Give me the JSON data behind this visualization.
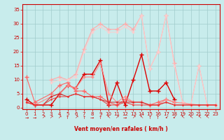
{
  "xlabel": "Vent moyen/en rafales ( km/h )",
  "xlim": [
    -0.5,
    23.5
  ],
  "ylim": [
    -0.5,
    37
  ],
  "yticks": [
    0,
    5,
    10,
    15,
    20,
    25,
    30,
    35
  ],
  "xticks": [
    0,
    1,
    2,
    3,
    4,
    5,
    6,
    7,
    8,
    9,
    10,
    11,
    12,
    13,
    14,
    15,
    16,
    17,
    18,
    19,
    20,
    21,
    22,
    23
  ],
  "bg_color": "#c8ecec",
  "grid_color": "#a0cccc",
  "axis_color": "#cc0000",
  "series": [
    {
      "x": [
        0,
        1,
        3,
        4,
        5,
        6,
        7,
        8,
        9,
        10,
        11,
        12,
        13,
        14,
        15,
        16,
        17,
        18
      ],
      "y": [
        3,
        1,
        1,
        5,
        8,
        7,
        12,
        12,
        17,
        1,
        9,
        1,
        10,
        19,
        6,
        6,
        9,
        3
      ],
      "color": "#dd0000",
      "lw": 1.0,
      "marker": "+",
      "ms": 4
    },
    {
      "x": [
        0,
        1,
        3,
        4,
        5,
        6,
        7,
        8,
        9,
        10,
        11,
        12,
        13,
        14,
        15,
        16,
        17,
        18
      ],
      "y": [
        11,
        2,
        5,
        8,
        9,
        6,
        6,
        4,
        4,
        2,
        1,
        3,
        2,
        2,
        1,
        2,
        3,
        2
      ],
      "color": "#ff6666",
      "lw": 0.8,
      "marker": "+",
      "ms": 4
    },
    {
      "x": [
        3,
        4,
        5,
        6,
        7,
        8,
        9,
        10,
        11,
        12,
        13,
        14,
        15,
        16,
        17,
        18,
        19,
        20,
        21,
        22,
        23
      ],
      "y": [
        10,
        11,
        10,
        12,
        21,
        28,
        30,
        28,
        28,
        30,
        28,
        33,
        14,
        20,
        33,
        16,
        2,
        1,
        15,
        1,
        1
      ],
      "color": "#ffaaaa",
      "lw": 0.8,
      "marker": "+",
      "ms": 4
    },
    {
      "x": [
        3,
        4,
        5,
        6,
        7,
        8,
        9,
        10,
        11,
        12,
        13,
        14,
        15,
        16,
        17,
        18,
        19,
        20,
        21,
        22,
        23
      ],
      "y": [
        9,
        10,
        10,
        11,
        20,
        27,
        29,
        27,
        27,
        29,
        27,
        33,
        14,
        20,
        33,
        15,
        2,
        1,
        15,
        1,
        1
      ],
      "color": "#ffcccc",
      "lw": 0.7,
      "marker": "+",
      "ms": 3
    },
    {
      "x": [
        0,
        1,
        3,
        4,
        5,
        6,
        7,
        8,
        9,
        10,
        11,
        12,
        13,
        14,
        15,
        16,
        17,
        18,
        21,
        22,
        23
      ],
      "y": [
        2,
        1,
        4,
        5,
        8,
        7,
        11,
        11,
        16,
        5,
        2,
        4,
        2,
        2,
        1,
        1,
        3,
        2,
        1,
        1,
        1
      ],
      "color": "#ff8888",
      "lw": 0.8,
      "marker": "+",
      "ms": 3
    },
    {
      "x": [
        0,
        1,
        2,
        3,
        4,
        5,
        6,
        7,
        8,
        9,
        10,
        11,
        12,
        13,
        14,
        15,
        16,
        17,
        18,
        19,
        20,
        21,
        22,
        23
      ],
      "y": [
        2,
        1,
        1,
        4,
        5,
        4,
        5,
        4,
        4,
        3,
        2,
        2,
        2,
        2,
        2,
        1,
        1,
        2,
        1,
        1,
        1,
        1,
        1,
        1
      ],
      "color": "#cc2222",
      "lw": 0.7,
      "marker": "+",
      "ms": 2
    },
    {
      "x": [
        0,
        1,
        2,
        3,
        4,
        5,
        6,
        7,
        8,
        9,
        10,
        11,
        12,
        13,
        14,
        15,
        16,
        17,
        18,
        19,
        20,
        21,
        22,
        23
      ],
      "y": [
        2,
        1,
        1,
        3,
        4,
        4,
        5,
        4,
        4,
        3,
        1,
        1,
        2,
        1,
        1,
        1,
        1,
        2,
        1,
        1,
        1,
        1,
        1,
        1
      ],
      "color": "#ee3333",
      "lw": 0.7,
      "marker": "+",
      "ms": 2
    }
  ],
  "arrow_syms": [
    "→",
    "→",
    "↗",
    "↗",
    "↗",
    "↑",
    "↗",
    "↑",
    "→",
    "↑",
    "↖",
    "↗",
    "→",
    "↗",
    "↖",
    "↑",
    "↑",
    "↙",
    "↙",
    "↖",
    "↖",
    "↖",
    "↖"
  ]
}
